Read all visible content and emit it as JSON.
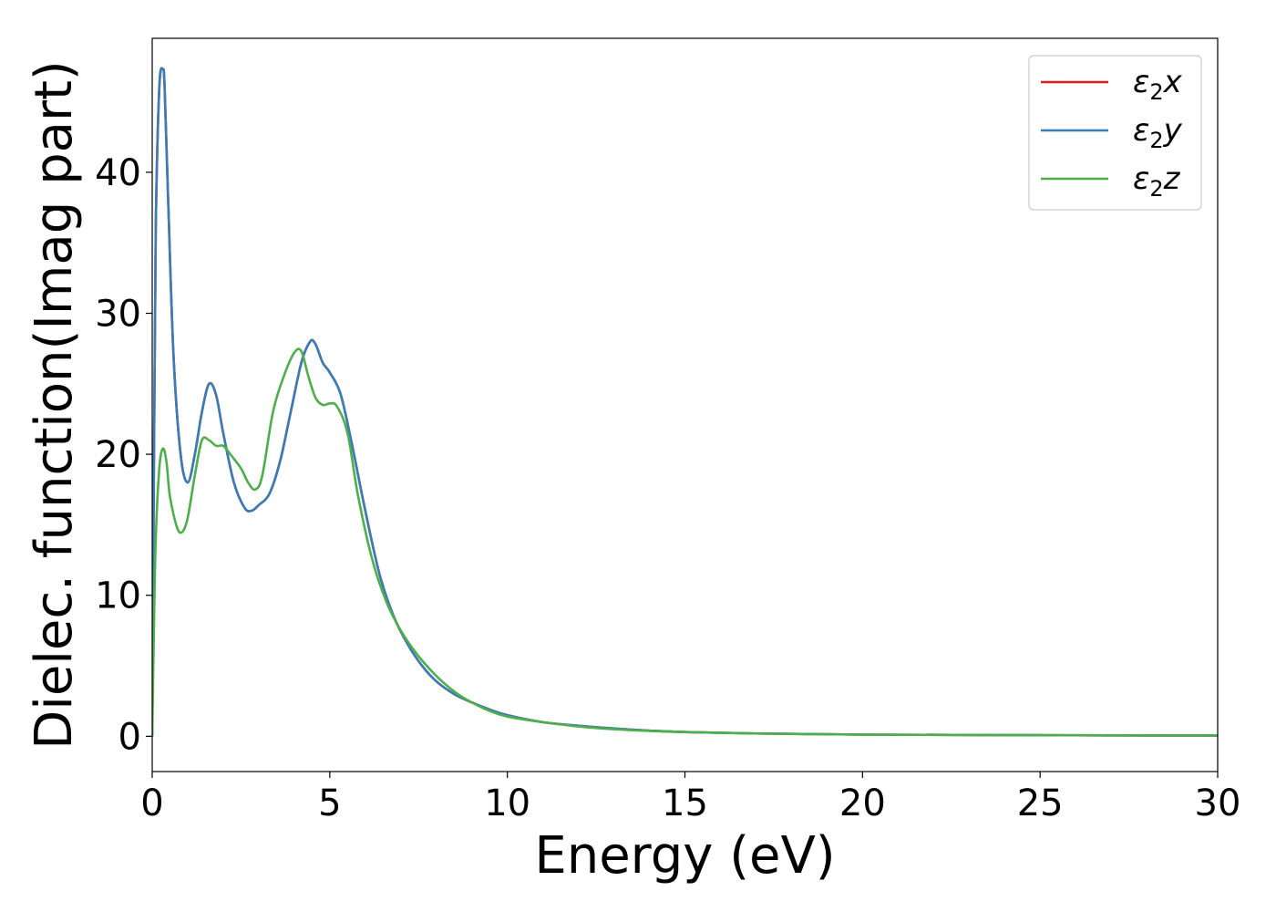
{
  "chart_data": {
    "type": "line",
    "title": "",
    "xlabel": "Energy (eV)",
    "ylabel": "Dielec. function(Imag part)",
    "xlim": [
      0,
      30
    ],
    "ylim": [
      -2.5,
      49.5
    ],
    "xticks": [
      0,
      5,
      10,
      15,
      20,
      25,
      30
    ],
    "yticks": [
      0,
      10,
      20,
      30,
      40
    ],
    "xtick_labels": [
      "0",
      "5",
      "10",
      "15",
      "20",
      "25",
      "30"
    ],
    "ytick_labels": [
      "0",
      "10",
      "20",
      "30",
      "40"
    ],
    "grid": false,
    "legend_position": "top-right",
    "series": [
      {
        "name": "ε₂x",
        "legend_base": "ε",
        "legend_sub": "2",
        "legend_suffix": "x",
        "color": "#e41a1c",
        "points": [
          [
            0,
            0
          ],
          [
            0.05,
            20
          ],
          [
            0.1,
            36
          ],
          [
            0.2,
            46
          ],
          [
            0.3,
            47.3
          ],
          [
            0.35,
            46
          ],
          [
            0.45,
            38
          ],
          [
            0.6,
            27
          ],
          [
            0.8,
            20
          ],
          [
            1.0,
            18
          ],
          [
            1.2,
            20
          ],
          [
            1.4,
            23
          ],
          [
            1.6,
            25
          ],
          [
            1.8,
            24.2
          ],
          [
            2.0,
            21.5
          ],
          [
            2.3,
            18
          ],
          [
            2.6,
            16.2
          ],
          [
            2.8,
            16
          ],
          [
            3.0,
            16.4
          ],
          [
            3.3,
            17.2
          ],
          [
            3.6,
            19.5
          ],
          [
            3.9,
            23
          ],
          [
            4.2,
            26.5
          ],
          [
            4.45,
            28
          ],
          [
            4.6,
            27.8
          ],
          [
            4.8,
            26.5
          ],
          [
            5.0,
            25.8
          ],
          [
            5.3,
            24.3
          ],
          [
            5.6,
            21
          ],
          [
            6.0,
            16
          ],
          [
            6.4,
            11.5
          ],
          [
            6.8,
            8.5
          ],
          [
            7.2,
            6.5
          ],
          [
            7.6,
            5
          ],
          [
            8.0,
            3.9
          ],
          [
            8.5,
            3
          ],
          [
            9.0,
            2.4
          ],
          [
            9.5,
            1.9
          ],
          [
            10,
            1.5
          ],
          [
            11,
            1.0
          ],
          [
            12,
            0.75
          ],
          [
            13,
            0.55
          ],
          [
            14,
            0.4
          ],
          [
            15,
            0.3
          ],
          [
            17,
            0.2
          ],
          [
            20,
            0.12
          ],
          [
            25,
            0.08
          ],
          [
            30,
            0.05
          ]
        ]
      },
      {
        "name": "ε₂y",
        "legend_base": "ε",
        "legend_sub": "2",
        "legend_suffix": "y",
        "color": "#377eb8",
        "points": [
          [
            0,
            0
          ],
          [
            0.05,
            20
          ],
          [
            0.1,
            36
          ],
          [
            0.2,
            46
          ],
          [
            0.3,
            47.3
          ],
          [
            0.35,
            46
          ],
          [
            0.45,
            38
          ],
          [
            0.6,
            27
          ],
          [
            0.8,
            20
          ],
          [
            1.0,
            18
          ],
          [
            1.2,
            20
          ],
          [
            1.4,
            23
          ],
          [
            1.6,
            25
          ],
          [
            1.8,
            24.2
          ],
          [
            2.0,
            21.5
          ],
          [
            2.3,
            18
          ],
          [
            2.6,
            16.2
          ],
          [
            2.8,
            16
          ],
          [
            3.0,
            16.4
          ],
          [
            3.3,
            17.2
          ],
          [
            3.6,
            19.5
          ],
          [
            3.9,
            23
          ],
          [
            4.2,
            26.5
          ],
          [
            4.45,
            28
          ],
          [
            4.6,
            27.8
          ],
          [
            4.8,
            26.5
          ],
          [
            5.0,
            25.8
          ],
          [
            5.3,
            24.3
          ],
          [
            5.6,
            21
          ],
          [
            6.0,
            16
          ],
          [
            6.4,
            11.5
          ],
          [
            6.8,
            8.5
          ],
          [
            7.2,
            6.5
          ],
          [
            7.6,
            5
          ],
          [
            8.0,
            3.9
          ],
          [
            8.5,
            3
          ],
          [
            9.0,
            2.4
          ],
          [
            9.5,
            1.9
          ],
          [
            10,
            1.5
          ],
          [
            11,
            1.0
          ],
          [
            12,
            0.75
          ],
          [
            13,
            0.55
          ],
          [
            14,
            0.4
          ],
          [
            15,
            0.3
          ],
          [
            17,
            0.2
          ],
          [
            20,
            0.12
          ],
          [
            25,
            0.08
          ],
          [
            30,
            0.05
          ]
        ]
      },
      {
        "name": "ε₂z",
        "legend_base": "ε",
        "legend_sub": "2",
        "legend_suffix": "z",
        "color": "#4daf4a",
        "points": [
          [
            0,
            0
          ],
          [
            0.05,
            8
          ],
          [
            0.1,
            14
          ],
          [
            0.2,
            19
          ],
          [
            0.3,
            20.4
          ],
          [
            0.4,
            19.5
          ],
          [
            0.5,
            17
          ],
          [
            0.7,
            14.8
          ],
          [
            0.85,
            14.5
          ],
          [
            1.0,
            15.5
          ],
          [
            1.2,
            18.5
          ],
          [
            1.4,
            21
          ],
          [
            1.6,
            21
          ],
          [
            1.8,
            20.6
          ],
          [
            2.0,
            20.6
          ],
          [
            2.2,
            20
          ],
          [
            2.5,
            19
          ],
          [
            2.7,
            18
          ],
          [
            2.9,
            17.5
          ],
          [
            3.1,
            18.5
          ],
          [
            3.4,
            23
          ],
          [
            3.7,
            25.5
          ],
          [
            4.0,
            27.2
          ],
          [
            4.2,
            27.3
          ],
          [
            4.4,
            25.5
          ],
          [
            4.6,
            24
          ],
          [
            4.8,
            23.5
          ],
          [
            5.0,
            23.6
          ],
          [
            5.2,
            23.4
          ],
          [
            5.5,
            21.5
          ],
          [
            5.8,
            17
          ],
          [
            6.2,
            12.5
          ],
          [
            6.6,
            9.5
          ],
          [
            7.0,
            7.5
          ],
          [
            7.4,
            6
          ],
          [
            7.8,
            4.8
          ],
          [
            8.2,
            3.8
          ],
          [
            8.6,
            3
          ],
          [
            9.0,
            2.4
          ],
          [
            9.5,
            1.8
          ],
          [
            10,
            1.4
          ],
          [
            11,
            1.0
          ],
          [
            12,
            0.7
          ],
          [
            13,
            0.5
          ],
          [
            14,
            0.38
          ],
          [
            15,
            0.3
          ],
          [
            17,
            0.2
          ],
          [
            20,
            0.12
          ],
          [
            25,
            0.08
          ],
          [
            30,
            0.05
          ]
        ]
      }
    ]
  }
}
